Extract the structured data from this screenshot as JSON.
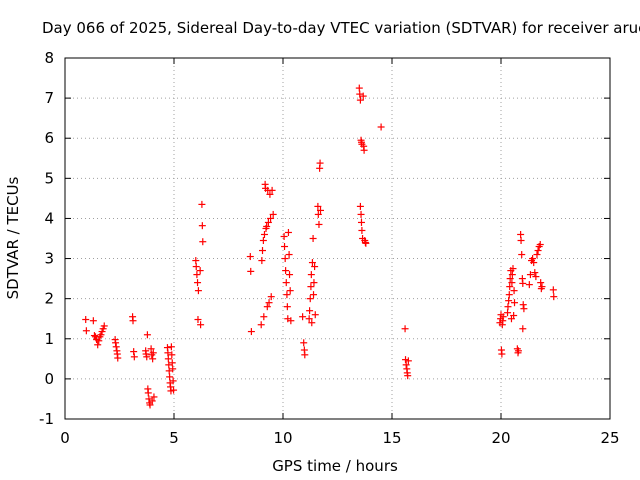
{
  "chart_data": {
    "type": "scatter",
    "title": "Day 066 of 2025, Sidereal Day-to-day VTEC variation (SDTVAR) for receiver aruc",
    "xlabel": "GPS time / hours",
    "ylabel": "SDTVAR / TECUs",
    "xlim": [
      0,
      25
    ],
    "ylim": [
      -1,
      8
    ],
    "xticks": [
      "0",
      "5",
      "10",
      "15",
      "20",
      "25"
    ],
    "yticks": [
      "-1",
      "0",
      "1",
      "2",
      "3",
      "4",
      "5",
      "6",
      "7",
      "8"
    ],
    "grid": true,
    "marker": "+",
    "color": "#ff0000",
    "series": [
      {
        "name": "SDTVAR",
        "points": [
          [
            0.95,
            1.48
          ],
          [
            0.98,
            1.2
          ],
          [
            1.3,
            1.45
          ],
          [
            1.35,
            1.08
          ],
          [
            1.4,
            1.05
          ],
          [
            1.45,
            0.98
          ],
          [
            1.5,
            0.85
          ],
          [
            1.55,
            0.95
          ],
          [
            1.6,
            1.05
          ],
          [
            1.65,
            1.1
          ],
          [
            1.7,
            1.18
          ],
          [
            1.75,
            1.25
          ],
          [
            1.8,
            1.32
          ],
          [
            2.3,
            0.98
          ],
          [
            2.32,
            0.9
          ],
          [
            2.35,
            0.8
          ],
          [
            2.38,
            0.7
          ],
          [
            2.4,
            0.62
          ],
          [
            2.42,
            0.52
          ],
          [
            3.1,
            1.55
          ],
          [
            3.12,
            1.45
          ],
          [
            3.15,
            0.68
          ],
          [
            3.18,
            0.55
          ],
          [
            3.7,
            0.7
          ],
          [
            3.72,
            0.62
          ],
          [
            3.75,
            0.55
          ],
          [
            3.78,
            1.1
          ],
          [
            3.8,
            -0.25
          ],
          [
            3.82,
            -0.35
          ],
          [
            3.85,
            -0.5
          ],
          [
            3.88,
            -0.6
          ],
          [
            3.9,
            -0.65
          ],
          [
            3.95,
            0.75
          ],
          [
            3.98,
            0.6
          ],
          [
            4.0,
            -0.55
          ],
          [
            4.02,
            0.5
          ],
          [
            4.05,
            0.65
          ],
          [
            4.08,
            -0.45
          ],
          [
            4.7,
            0.78
          ],
          [
            4.72,
            0.65
          ],
          [
            4.74,
            0.5
          ],
          [
            4.76,
            0.35
          ],
          [
            4.78,
            0.2
          ],
          [
            4.8,
            0.05
          ],
          [
            4.82,
            -0.1
          ],
          [
            4.84,
            -0.2
          ],
          [
            4.86,
            -0.3
          ],
          [
            4.88,
            0.8
          ],
          [
            4.9,
            0.6
          ],
          [
            4.92,
            0.4
          ],
          [
            4.94,
            0.25
          ],
          [
            4.96,
            -0.05
          ],
          [
            4.98,
            -0.28
          ],
          [
            6.0,
            2.95
          ],
          [
            6.02,
            2.8
          ],
          [
            6.05,
            2.6
          ],
          [
            6.08,
            2.4
          ],
          [
            6.1,
            1.48
          ],
          [
            6.12,
            2.2
          ],
          [
            6.2,
            2.7
          ],
          [
            6.22,
            1.35
          ],
          [
            6.28,
            4.35
          ],
          [
            6.3,
            3.82
          ],
          [
            6.32,
            3.42
          ],
          [
            8.5,
            3.05
          ],
          [
            8.52,
            2.68
          ],
          [
            8.55,
            1.18
          ],
          [
            9.0,
            1.35
          ],
          [
            9.03,
            2.95
          ],
          [
            9.06,
            3.2
          ],
          [
            9.1,
            3.45
          ],
          [
            9.12,
            1.55
          ],
          [
            9.15,
            3.6
          ],
          [
            9.18,
            4.85
          ],
          [
            9.2,
            4.75
          ],
          [
            9.22,
            3.75
          ],
          [
            9.25,
            3.8
          ],
          [
            9.28,
            1.8
          ],
          [
            9.3,
            4.7
          ],
          [
            9.33,
            3.9
          ],
          [
            9.36,
            1.9
          ],
          [
            9.4,
            4.6
          ],
          [
            9.43,
            4.0
          ],
          [
            9.46,
            2.05
          ],
          [
            9.5,
            4.7
          ],
          [
            9.55,
            4.1
          ],
          [
            10.05,
            3.55
          ],
          [
            10.07,
            3.3
          ],
          [
            10.1,
            3.0
          ],
          [
            10.12,
            2.7
          ],
          [
            10.15,
            2.4
          ],
          [
            10.18,
            2.1
          ],
          [
            10.2,
            1.8
          ],
          [
            10.22,
            1.5
          ],
          [
            10.25,
            3.65
          ],
          [
            10.28,
            3.1
          ],
          [
            10.3,
            2.6
          ],
          [
            10.33,
            2.2
          ],
          [
            10.36,
            1.45
          ],
          [
            10.9,
            1.55
          ],
          [
            10.95,
            0.9
          ],
          [
            10.98,
            0.72
          ],
          [
            11.0,
            0.6
          ],
          [
            11.2,
            1.5
          ],
          [
            11.22,
            1.7
          ],
          [
            11.25,
            2.0
          ],
          [
            11.28,
            2.3
          ],
          [
            11.3,
            2.6
          ],
          [
            11.32,
            1.4
          ],
          [
            11.35,
            2.9
          ],
          [
            11.38,
            3.5
          ],
          [
            11.4,
            2.1
          ],
          [
            11.42,
            2.4
          ],
          [
            11.45,
            2.8
          ],
          [
            11.48,
            1.6
          ],
          [
            11.6,
            4.3
          ],
          [
            11.62,
            4.1
          ],
          [
            11.65,
            3.85
          ],
          [
            11.68,
            5.25
          ],
          [
            11.7,
            5.38
          ],
          [
            11.72,
            4.2
          ],
          [
            13.5,
            7.25
          ],
          [
            13.52,
            7.1
          ],
          [
            13.55,
            6.95
          ],
          [
            13.58,
            5.95
          ],
          [
            13.6,
            5.9
          ],
          [
            13.62,
            5.85
          ],
          [
            13.55,
            4.3
          ],
          [
            13.58,
            4.1
          ],
          [
            13.6,
            3.9
          ],
          [
            13.62,
            3.7
          ],
          [
            13.65,
            3.5
          ],
          [
            13.68,
            7.05
          ],
          [
            13.7,
            5.8
          ],
          [
            13.72,
            5.7
          ],
          [
            13.75,
            3.45
          ],
          [
            13.78,
            3.4
          ],
          [
            13.8,
            3.38
          ],
          [
            14.5,
            6.28
          ],
          [
            15.6,
            1.25
          ],
          [
            15.62,
            0.48
          ],
          [
            15.65,
            0.35
          ],
          [
            15.68,
            0.25
          ],
          [
            15.7,
            0.15
          ],
          [
            15.72,
            0.08
          ],
          [
            15.75,
            0.45
          ],
          [
            19.95,
            1.4
          ],
          [
            19.98,
            1.5
          ],
          [
            20.0,
            1.6
          ],
          [
            20.02,
            0.72
          ],
          [
            20.04,
            0.62
          ],
          [
            20.06,
            1.35
          ],
          [
            20.08,
            1.45
          ],
          [
            20.1,
            1.55
          ],
          [
            20.3,
            1.65
          ],
          [
            20.32,
            1.8
          ],
          [
            20.35,
            1.95
          ],
          [
            20.38,
            2.1
          ],
          [
            20.4,
            2.3
          ],
          [
            20.42,
            2.5
          ],
          [
            20.45,
            2.7
          ],
          [
            20.48,
            1.5
          ],
          [
            20.5,
            2.4
          ],
          [
            20.52,
            2.6
          ],
          [
            20.55,
            2.75
          ],
          [
            20.58,
            1.58
          ],
          [
            20.6,
            2.2
          ],
          [
            20.62,
            1.9
          ],
          [
            20.75,
            0.75
          ],
          [
            20.78,
            0.65
          ],
          [
            20.8,
            0.7
          ],
          [
            20.9,
            3.6
          ],
          [
            20.92,
            3.45
          ],
          [
            20.95,
            3.1
          ],
          [
            20.98,
            2.5
          ],
          [
            21.0,
            2.38
          ],
          [
            21.02,
            1.85
          ],
          [
            21.05,
            1.75
          ],
          [
            21.0,
            1.25
          ],
          [
            21.3,
            2.35
          ],
          [
            21.35,
            2.6
          ],
          [
            21.4,
            2.95
          ],
          [
            21.45,
            3.0
          ],
          [
            21.5,
            2.9
          ],
          [
            21.55,
            2.65
          ],
          [
            21.6,
            2.55
          ],
          [
            21.65,
            3.1
          ],
          [
            21.7,
            3.2
          ],
          [
            21.75,
            3.3
          ],
          [
            21.8,
            3.35
          ],
          [
            21.82,
            2.4
          ],
          [
            21.85,
            2.25
          ],
          [
            21.88,
            2.3
          ],
          [
            22.4,
            2.22
          ],
          [
            22.42,
            2.05
          ]
        ]
      }
    ]
  }
}
